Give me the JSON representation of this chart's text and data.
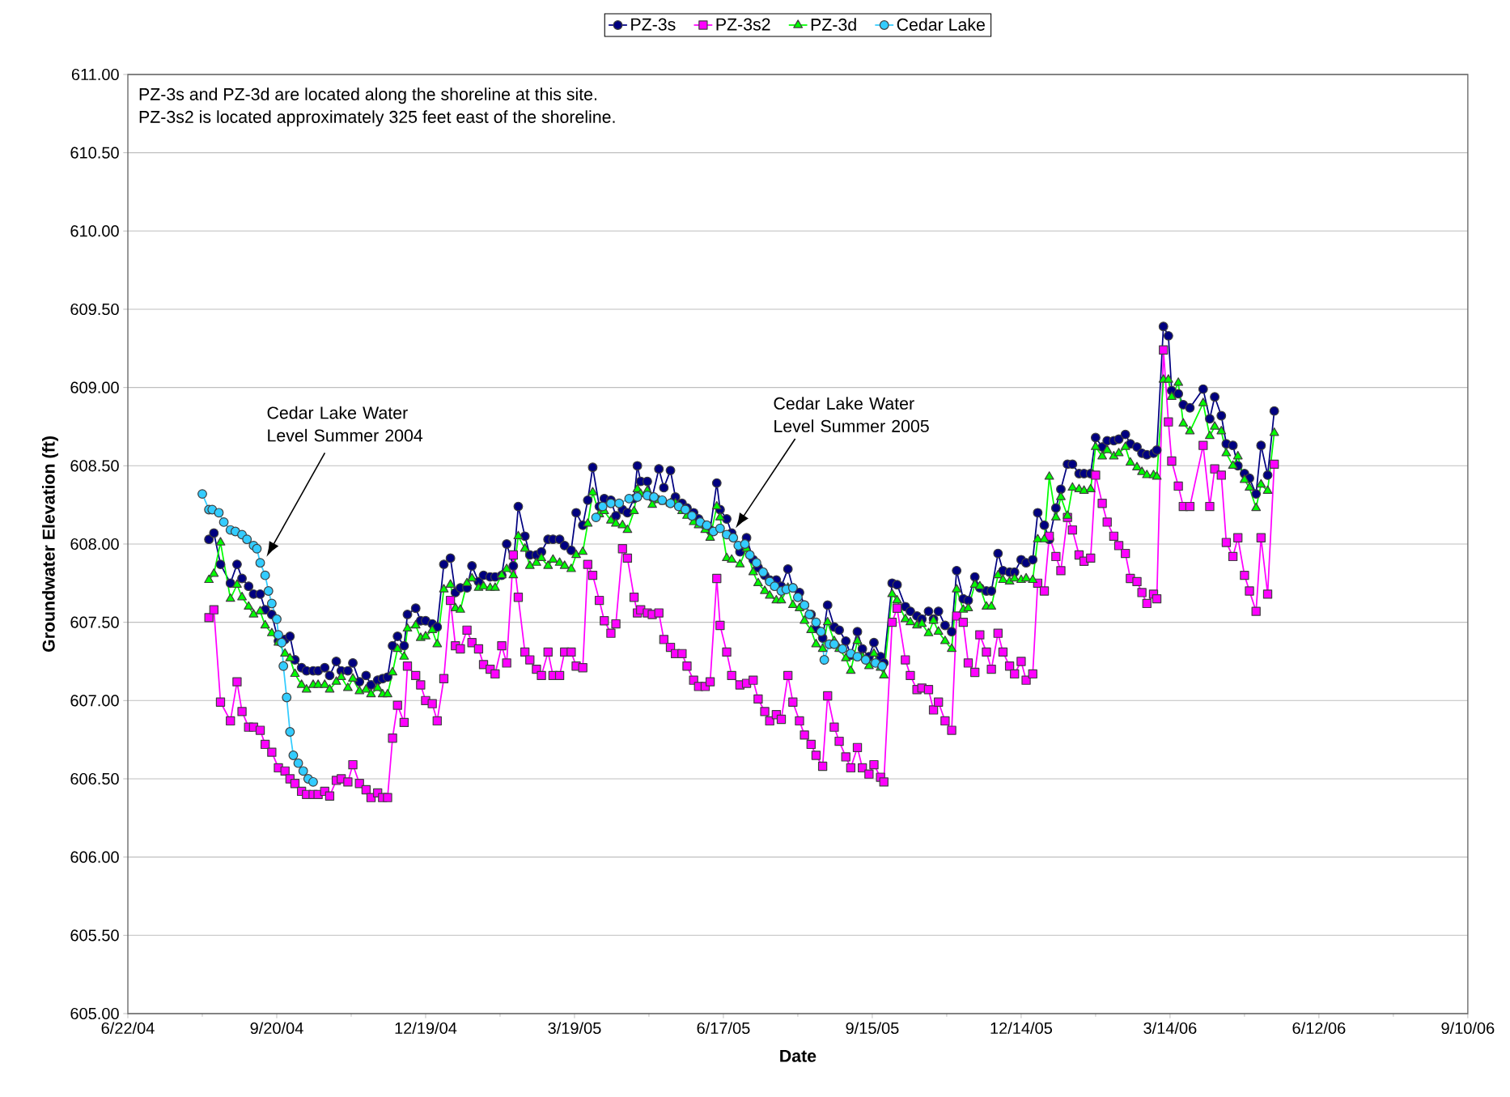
{
  "chart_data": {
    "type": "line",
    "xlabel": "Date",
    "ylabel": "Groundwater Elevation (ft)",
    "xlim": [
      "2004-06-22",
      "2006-09-10"
    ],
    "xticks": [
      {
        "value": "2004-06-22",
        "label": "6/22/04"
      },
      {
        "value": "2004-09-20",
        "label": "9/20/04"
      },
      {
        "value": "2004-12-19",
        "label": "12/19/04"
      },
      {
        "value": "2005-03-19",
        "label": "3/19/05"
      },
      {
        "value": "2005-06-17",
        "label": "6/17/05"
      },
      {
        "value": "2005-09-15",
        "label": "9/15/05"
      },
      {
        "value": "2005-12-14",
        "label": "12/14/05"
      },
      {
        "value": "2006-03-14",
        "label": "3/14/06"
      },
      {
        "value": "2006-06-12",
        "label": "6/12/06"
      },
      {
        "value": "2006-09-10",
        "label": "9/10/06"
      }
    ],
    "ylim": [
      605,
      611
    ],
    "yticks": [
      {
        "value": 605,
        "label": "605.00"
      },
      {
        "value": 605.5,
        "label": "605.50"
      },
      {
        "value": 606,
        "label": "606.00"
      },
      {
        "value": 606.5,
        "label": "606.50"
      },
      {
        "value": 607,
        "label": "607.00"
      },
      {
        "value": 607.5,
        "label": "607.50"
      },
      {
        "value": 608,
        "label": "608.00"
      },
      {
        "value": 608.5,
        "label": "608.50"
      },
      {
        "value": 609,
        "label": "609.00"
      },
      {
        "value": 609.5,
        "label": "609.50"
      },
      {
        "value": 610,
        "label": "610.00"
      },
      {
        "value": 610.5,
        "label": "610.50"
      },
      {
        "value": 611,
        "label": "611.00"
      }
    ],
    "grid": "y",
    "legend": "top",
    "annotations": [
      "PZ-3s and PZ-3d are located along the shoreline at this site.",
      "PZ-3s2 is located approximately 325 feet east of the shoreline.",
      "Cedar Lake Water Level Summer 2004",
      "Cedar Lake Water Level Summer 2005"
    ],
    "x": [
      "2004-08-10",
      "2004-08-13",
      "2004-08-17",
      "2004-08-23",
      "2004-08-27",
      "2004-08-30",
      "2004-09-03",
      "2004-09-06",
      "2004-09-10",
      "2004-09-13",
      "2004-09-17",
      "2004-09-21",
      "2004-09-25",
      "2004-09-28",
      "2004-10-01",
      "2004-10-05",
      "2004-10-08",
      "2004-10-12",
      "2004-10-15",
      "2004-10-19",
      "2004-10-22",
      "2004-10-26",
      "2004-10-29",
      "2004-11-02",
      "2004-11-05",
      "2004-11-09",
      "2004-11-13",
      "2004-11-16",
      "2004-11-20",
      "2004-11-23",
      "2004-11-26",
      "2004-11-29",
      "2004-12-02",
      "2004-12-06",
      "2004-12-08",
      "2004-12-13",
      "2004-12-16",
      "2004-12-19",
      "2004-12-23",
      "2004-12-26",
      "2004-12-30",
      "2005-01-03",
      "2005-01-06",
      "2005-01-09",
      "2005-01-13",
      "2005-01-16",
      "2005-01-20",
      "2005-01-23",
      "2005-01-27",
      "2005-01-30",
      "2005-02-03",
      "2005-02-06",
      "2005-02-10",
      "2005-02-13",
      "2005-02-17",
      "2005-02-20",
      "2005-02-24",
      "2005-02-27",
      "2005-03-03",
      "2005-03-06",
      "2005-03-10",
      "2005-03-13",
      "2005-03-17",
      "2005-03-20",
      "2005-03-24",
      "2005-03-27",
      "2005-03-30",
      "2005-04-03",
      "2005-04-06",
      "2005-04-10",
      "2005-04-13",
      "2005-04-17",
      "2005-04-20",
      "2005-04-24",
      "2005-04-26",
      "2005-04-28",
      "2005-05-02",
      "2005-05-05",
      "2005-05-09",
      "2005-05-12",
      "2005-05-16",
      "2005-05-19",
      "2005-05-23",
      "2005-05-26",
      "2005-05-30",
      "2005-06-02",
      "2005-06-06",
      "2005-06-09",
      "2005-06-13",
      "2005-06-15",
      "2005-06-19",
      "2005-06-22",
      "2005-06-27",
      "2005-07-01",
      "2005-07-05",
      "2005-07-08",
      "2005-07-12",
      "2005-07-15",
      "2005-07-19",
      "2005-07-22",
      "2005-07-26",
      "2005-07-29",
      "2005-08-02",
      "2005-08-05",
      "2005-08-09",
      "2005-08-12",
      "2005-08-16",
      "2005-08-19",
      "2005-08-23",
      "2005-08-26",
      "2005-08-30",
      "2005-09-02",
      "2005-09-06",
      "2005-09-09",
      "2005-09-13",
      "2005-09-16",
      "2005-09-20",
      "2005-09-22",
      "2005-09-27",
      "2005-09-30",
      "2005-10-05",
      "2005-10-08",
      "2005-10-12",
      "2005-10-15",
      "2005-10-19",
      "2005-10-22",
      "2005-10-25",
      "2005-10-29",
      "2005-11-02",
      "2005-11-05",
      "2005-11-09",
      "2005-11-12",
      "2005-11-16",
      "2005-11-19",
      "2005-11-23",
      "2005-11-26",
      "2005-11-30",
      "2005-12-03",
      "2005-12-07",
      "2005-12-10",
      "2005-12-14",
      "2005-12-17",
      "2005-12-21",
      "2005-12-24",
      "2005-12-28",
      "2005-12-31",
      "2006-01-04",
      "2006-01-07",
      "2006-01-11",
      "2006-01-14",
      "2006-01-18",
      "2006-01-21",
      "2006-01-25",
      "2006-01-28",
      "2006-02-01",
      "2006-02-04",
      "2006-02-08",
      "2006-02-11",
      "2006-02-15",
      "2006-02-18",
      "2006-02-22",
      "2006-02-25",
      "2006-02-28",
      "2006-03-04",
      "2006-03-06",
      "2006-03-10",
      "2006-03-13",
      "2006-03-15",
      "2006-03-19",
      "2006-03-22",
      "2006-03-26",
      "2006-04-03",
      "2006-04-07",
      "2006-04-10",
      "2006-04-14",
      "2006-04-17",
      "2006-04-21",
      "2006-04-24",
      "2006-04-28",
      "2006-05-01",
      "2006-05-05",
      "2006-05-08",
      "2006-05-12",
      "2006-05-16"
    ],
    "series": [
      {
        "name": "PZ-3s",
        "color": "#000080",
        "marker": "circle",
        "values": [
          608.03,
          608.07,
          607.87,
          607.75,
          607.87,
          607.78,
          607.73,
          607.68,
          607.68,
          607.58,
          607.55,
          607.38,
          607.39,
          607.41,
          607.26,
          607.21,
          607.19,
          607.19,
          607.19,
          607.21,
          607.16,
          607.25,
          607.19,
          607.19,
          607.24,
          607.12,
          607.16,
          607.1,
          607.13,
          607.14,
          607.15,
          607.35,
          607.41,
          607.35,
          607.55,
          607.59,
          607.51,
          607.51,
          607.49,
          607.47,
          607.87,
          607.91,
          607.69,
          607.72,
          607.72,
          607.86,
          607.76,
          607.8,
          607.79,
          607.79,
          607.8,
          608.0,
          607.86,
          608.24,
          608.05,
          607.93,
          607.93,
          607.95,
          608.03,
          608.03,
          608.03,
          607.99,
          607.96,
          608.2,
          608.12,
          608.28,
          608.49,
          608.24,
          608.29,
          608.28,
          608.18,
          608.22,
          608.2,
          608.29,
          608.5,
          608.4,
          608.4,
          608.3,
          608.48,
          608.36,
          608.47,
          608.3,
          608.26,
          608.23,
          608.2,
          608.16,
          608.12,
          608.09,
          608.39,
          608.22,
          608.16,
          608.07,
          607.95,
          608.04,
          607.9,
          607.85,
          607.8,
          607.77,
          607.77,
          607.73,
          607.84,
          607.72,
          607.69,
          607.61,
          607.55,
          607.46,
          607.4,
          607.61,
          607.47,
          607.45,
          607.38,
          607.29,
          607.44,
          607.33,
          607.28,
          607.37,
          607.28,
          607.24,
          607.75,
          607.74,
          607.6,
          607.57,
          607.54,
          607.52,
          607.57,
          607.52,
          607.57,
          607.48,
          607.44,
          607.83,
          607.65,
          607.64,
          607.79,
          607.72,
          607.7,
          607.7,
          607.94,
          607.83,
          607.82,
          607.82,
          607.9,
          607.88,
          607.9,
          608.2,
          608.12,
          608.03,
          608.23,
          608.35,
          608.51,
          608.51,
          608.45,
          608.45,
          608.45,
          608.68,
          608.62,
          608.66,
          608.66,
          608.67,
          608.7,
          608.64,
          608.62,
          608.58,
          608.57,
          608.58,
          608.6,
          609.39,
          609.33,
          608.98,
          608.96,
          608.89,
          608.87,
          608.99,
          608.8,
          608.94,
          608.82,
          608.64,
          608.63,
          608.5,
          608.45,
          608.42,
          608.32,
          608.63,
          608.44,
          608.85
        ]
      },
      {
        "name": "PZ-3s2",
        "color": "#ff00ff",
        "marker": "square",
        "values": [
          607.53,
          607.58,
          606.99,
          606.87,
          607.12,
          606.93,
          606.83,
          606.83,
          606.81,
          606.72,
          606.67,
          606.57,
          606.55,
          606.5,
          606.47,
          606.42,
          606.4,
          606.4,
          606.4,
          606.42,
          606.39,
          606.49,
          606.5,
          606.48,
          606.59,
          606.47,
          606.43,
          606.38,
          606.41,
          606.38,
          606.38,
          606.76,
          606.97,
          606.86,
          607.22,
          607.16,
          607.1,
          607.0,
          606.98,
          606.87,
          607.14,
          607.64,
          607.35,
          607.33,
          607.45,
          607.37,
          607.33,
          607.23,
          607.2,
          607.17,
          607.35,
          607.24,
          607.93,
          607.66,
          607.31,
          607.26,
          607.2,
          607.16,
          607.31,
          607.16,
          607.16,
          607.31,
          607.31,
          607.22,
          607.21,
          607.87,
          607.8,
          607.64,
          607.51,
          607.43,
          607.49,
          607.97,
          607.91,
          607.66,
          607.56,
          607.58,
          607.56,
          607.55,
          607.56,
          607.39,
          607.34,
          607.3,
          607.3,
          607.22,
          607.13,
          607.09,
          607.09,
          607.12,
          607.78,
          607.48,
          607.31,
          607.16,
          607.1,
          607.11,
          607.13,
          607.01,
          606.93,
          606.87,
          606.91,
          606.88,
          607.16,
          606.99,
          606.87,
          606.78,
          606.72,
          606.65,
          606.58,
          607.03,
          606.83,
          606.74,
          606.64,
          606.57,
          606.7,
          606.57,
          606.53,
          606.59,
          606.51,
          606.48,
          607.5,
          607.59,
          607.26,
          607.16,
          607.07,
          607.08,
          607.07,
          606.94,
          606.99,
          606.87,
          606.81,
          607.54,
          607.5,
          607.24,
          607.18,
          607.42,
          607.31,
          607.2,
          607.43,
          607.31,
          607.22,
          607.17,
          607.25,
          607.13,
          607.17,
          607.75,
          607.7,
          608.05,
          607.92,
          607.83,
          608.17,
          608.09,
          607.93,
          607.89,
          607.91,
          608.44,
          608.26,
          608.14,
          608.05,
          607.99,
          607.94,
          607.78,
          607.76,
          607.69,
          607.62,
          607.68,
          607.65,
          609.24,
          608.78,
          608.53,
          608.37,
          608.24,
          608.24,
          608.63,
          608.24,
          608.48,
          608.44,
          608.01,
          607.92,
          608.04,
          607.8,
          607.7,
          607.57,
          608.04,
          607.68,
          608.51
        ]
      },
      {
        "name": "PZ-3d",
        "color": "#00ff00",
        "marker": "triangle",
        "values": [
          607.77,
          607.81,
          608.01,
          607.65,
          607.74,
          607.66,
          607.6,
          607.55,
          607.57,
          607.48,
          607.43,
          607.37,
          607.3,
          607.27,
          607.17,
          607.1,
          607.07,
          607.1,
          607.1,
          607.1,
          607.07,
          607.12,
          607.15,
          607.08,
          607.14,
          607.06,
          607.07,
          607.04,
          607.08,
          607.04,
          607.04,
          607.18,
          607.33,
          607.28,
          607.46,
          607.48,
          607.4,
          607.41,
          607.45,
          607.36,
          607.71,
          607.74,
          607.59,
          607.58,
          607.75,
          607.78,
          607.72,
          607.73,
          607.72,
          607.72,
          607.8,
          607.84,
          607.8,
          608.05,
          607.97,
          607.86,
          607.88,
          607.91,
          607.86,
          607.9,
          607.88,
          607.86,
          607.84,
          607.93,
          607.95,
          608.13,
          608.33,
          608.19,
          608.21,
          608.15,
          608.13,
          608.12,
          608.09,
          608.21,
          608.35,
          608.32,
          608.34,
          608.25,
          608.28,
          608.27,
          608.26,
          608.26,
          608.21,
          608.18,
          608.14,
          608.12,
          608.09,
          608.04,
          608.24,
          608.17,
          607.91,
          607.9,
          607.87,
          607.97,
          607.82,
          607.75,
          607.7,
          607.67,
          607.64,
          607.64,
          607.72,
          607.61,
          607.59,
          607.51,
          607.45,
          607.36,
          607.33,
          607.5,
          607.38,
          607.33,
          607.27,
          607.19,
          607.38,
          607.28,
          607.22,
          607.3,
          607.21,
          607.16,
          607.68,
          607.64,
          607.52,
          607.5,
          607.48,
          607.49,
          607.43,
          607.51,
          607.44,
          607.38,
          607.33,
          607.71,
          607.58,
          607.59,
          607.74,
          607.73,
          607.6,
          607.6,
          607.8,
          607.77,
          607.76,
          607.78,
          607.77,
          607.78,
          607.77,
          608.03,
          608.03,
          608.43,
          608.17,
          608.3,
          608.18,
          608.36,
          608.35,
          608.34,
          608.35,
          608.62,
          608.56,
          608.6,
          608.56,
          608.58,
          608.62,
          608.52,
          608.49,
          608.46,
          608.44,
          608.44,
          608.43,
          609.05,
          609.05,
          608.94,
          609.03,
          608.77,
          608.72,
          608.9,
          608.69,
          608.75,
          608.72,
          608.58,
          608.5,
          608.56,
          608.41,
          608.36,
          608.23,
          608.38,
          608.34,
          608.71
        ]
      },
      {
        "name": "Cedar Lake",
        "color": "#33ccff",
        "marker": "circle",
        "x": [
          "2004-08-06",
          "2004-08-10",
          "2004-08-12",
          "2004-08-16",
          "2004-08-19",
          "2004-08-23",
          "2004-08-26",
          "2004-08-30",
          "2004-09-02",
          "2004-09-06",
          "2004-09-08",
          "2004-09-10",
          "2004-09-13",
          "2004-09-15",
          "2004-09-17",
          "2004-09-20",
          "2004-09-21",
          "2004-09-23",
          "2004-09-24",
          "2004-09-26",
          "2004-09-28",
          "2004-09-30",
          "2004-10-03",
          "2004-10-06",
          "2004-10-09",
          "2004-10-12",
          "2005-01-01",
          "2005-04-01",
          "2005-04-05",
          "2005-04-10",
          "2005-04-15",
          "2005-04-21",
          "2005-04-26",
          "2005-05-02",
          "2005-05-06",
          "2005-05-11",
          "2005-05-16",
          "2005-05-21",
          "2005-05-25",
          "2005-05-29",
          "2005-06-03",
          "2005-06-07",
          "2005-06-11",
          "2005-06-15",
          "2005-06-19",
          "2005-06-23",
          "2005-06-26",
          "2005-06-30",
          "2005-07-03",
          "2005-07-07",
          "2005-07-11",
          "2005-07-15",
          "2005-07-18",
          "2005-07-22",
          "2005-07-25",
          "2005-07-29",
          "2005-08-01",
          "2005-08-05",
          "2005-08-08",
          "2005-08-12",
          "2005-08-15",
          "2005-08-17",
          "2005-08-20",
          "2005-08-23",
          "2005-08-28",
          "2005-09-02",
          "2005-09-06",
          "2005-09-11",
          "2005-09-17",
          "2005-09-21"
        ],
        "values": [
          608.32,
          608.22,
          608.22,
          608.2,
          608.14,
          608.09,
          608.08,
          608.06,
          608.03,
          607.99,
          607.97,
          607.88,
          607.8,
          607.7,
          607.62,
          607.52,
          607.42,
          607.37,
          607.22,
          607.02,
          606.8,
          606.65,
          606.6,
          606.55,
          606.5,
          606.48,
          null,
          608.17,
          608.24,
          608.26,
          608.26,
          608.29,
          608.3,
          608.31,
          608.3,
          608.28,
          608.26,
          608.24,
          608.22,
          608.18,
          608.14,
          608.12,
          608.08,
          608.1,
          608.06,
          608.04,
          607.99,
          608.0,
          607.93,
          607.88,
          607.82,
          607.76,
          607.73,
          607.7,
          607.71,
          607.72,
          607.66,
          607.61,
          607.55,
          607.5,
          607.44,
          607.26,
          607.36,
          607.36,
          607.33,
          607.3,
          607.28,
          607.26,
          607.24,
          607.22
        ]
      }
    ]
  }
}
